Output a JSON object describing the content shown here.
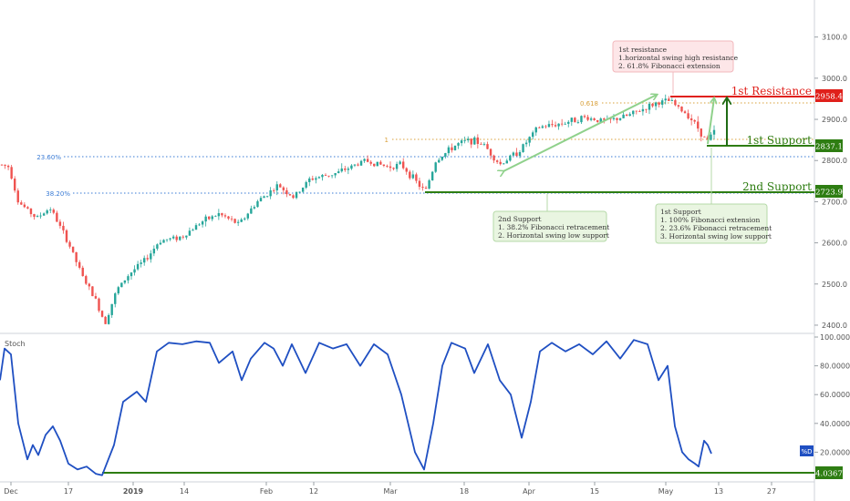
{
  "colors": {
    "bull": "#26a69a",
    "bear": "#ef5350",
    "stoch": "#1f4fc2",
    "support": "#2e7d12",
    "resistance": "#e0201b",
    "fib_orange": "#d9a13c",
    "fib_blue": "#3a7bd5",
    "arrow_green": "#8fd18b",
    "dark_arrow": "#1f6b14"
  },
  "chart_data": [
    {
      "type": "candlestick",
      "ylim": [
        2380,
        3190
      ],
      "yticks": [
        "2400.0",
        "2500.0",
        "2600.0",
        "2700.0",
        "2800.0",
        "2900.0",
        "3000.0",
        "3100.0"
      ],
      "xticks": [
        "Dec",
        "17",
        "2019",
        "14",
        "Feb",
        "12",
        "Mar",
        "18",
        "Apr",
        "15",
        "May",
        "13",
        "27"
      ],
      "price_path": [
        [
          0,
          2790
        ],
        [
          10,
          2785
        ],
        [
          20,
          2700
        ],
        [
          40,
          2660
        ],
        [
          55,
          2685
        ],
        [
          75,
          2600
        ],
        [
          90,
          2520
        ],
        [
          105,
          2460
        ],
        [
          115,
          2405
        ],
        [
          128,
          2485
        ],
        [
          142,
          2525
        ],
        [
          160,
          2560
        ],
        [
          175,
          2605
        ],
        [
          200,
          2615
        ],
        [
          220,
          2650
        ],
        [
          240,
          2670
        ],
        [
          262,
          2645
        ],
        [
          282,
          2700
        ],
        [
          305,
          2740
        ],
        [
          322,
          2710
        ],
        [
          340,
          2755
        ],
        [
          370,
          2770
        ],
        [
          400,
          2800
        ],
        [
          425,
          2785
        ],
        [
          440,
          2790
        ],
        [
          452,
          2760
        ],
        [
          466,
          2723
        ],
        [
          478,
          2800
        ],
        [
          500,
          2838
        ],
        [
          515,
          2850
        ],
        [
          530,
          2840
        ],
        [
          548,
          2790
        ],
        [
          570,
          2825
        ],
        [
          590,
          2880
        ],
        [
          615,
          2890
        ],
        [
          640,
          2905
        ],
        [
          665,
          2895
        ],
        [
          690,
          2910
        ],
        [
          705,
          2925
        ],
        [
          720,
          2940
        ],
        [
          735,
          2945
        ],
        [
          745,
          2925
        ],
        [
          755,
          2910
        ],
        [
          765,
          2880
        ],
        [
          775,
          2845
        ],
        [
          783,
          2870
        ]
      ]
    },
    {
      "type": "line",
      "title": "Stoch",
      "ylim": [
        0,
        100
      ],
      "yticks": [
        "20.0000",
        "40.0000",
        "60.0000",
        "80.0000",
        "100.0000"
      ],
      "series": [
        {
          "values": [
            [
              0,
              70
            ],
            [
              5,
              92
            ],
            [
              12,
              88
            ],
            [
              20,
              40
            ],
            [
              30,
              15
            ],
            [
              36,
              25
            ],
            [
              42,
              18
            ],
            [
              50,
              32
            ],
            [
              58,
              38
            ],
            [
              66,
              28
            ],
            [
              75,
              12
            ],
            [
              85,
              8
            ],
            [
              95,
              10
            ],
            [
              105,
              5
            ],
            [
              112,
              4
            ],
            [
              125,
              25
            ],
            [
              135,
              55
            ],
            [
              150,
              62
            ],
            [
              160,
              55
            ],
            [
              172,
              90
            ],
            [
              185,
              96
            ],
            [
              200,
              95
            ],
            [
              215,
              97
            ],
            [
              230,
              96
            ],
            [
              240,
              82
            ],
            [
              255,
              90
            ],
            [
              265,
              70
            ],
            [
              275,
              85
            ],
            [
              290,
              96
            ],
            [
              300,
              92
            ],
            [
              310,
              80
            ],
            [
              320,
              95
            ],
            [
              335,
              75
            ],
            [
              350,
              96
            ],
            [
              365,
              92
            ],
            [
              380,
              95
            ],
            [
              395,
              80
            ],
            [
              410,
              95
            ],
            [
              425,
              88
            ],
            [
              440,
              60
            ],
            [
              455,
              20
            ],
            [
              465,
              8
            ],
            [
              475,
              40
            ],
            [
              485,
              80
            ],
            [
              495,
              96
            ],
            [
              510,
              92
            ],
            [
              520,
              75
            ],
            [
              535,
              95
            ],
            [
              548,
              70
            ],
            [
              560,
              60
            ],
            [
              572,
              30
            ],
            [
              582,
              55
            ],
            [
              592,
              90
            ],
            [
              605,
              96
            ],
            [
              620,
              90
            ],
            [
              635,
              95
            ],
            [
              650,
              88
            ],
            [
              665,
              97
            ],
            [
              680,
              85
            ],
            [
              695,
              98
            ],
            [
              710,
              95
            ],
            [
              722,
              70
            ],
            [
              732,
              80
            ],
            [
              740,
              38
            ],
            [
              748,
              20
            ],
            [
              755,
              15
            ],
            [
              762,
              12
            ],
            [
              766,
              10
            ],
            [
              772,
              28
            ],
            [
              776,
              25
            ],
            [
              780,
              19
            ]
          ]
        }
      ]
    }
  ],
  "axis": {
    "price_labels": [
      "2400.0",
      "2500.0",
      "2600.0",
      "2700.0",
      "2800.0",
      "2900.0",
      "3000.0",
      "3100.0"
    ],
    "stoch_labels": [
      "20.0000",
      "40.0000",
      "60.0000",
      "80.0000",
      "100.0000"
    ],
    "time_labels": [
      "Dec",
      "17",
      "2019",
      "14",
      "Feb",
      "12",
      "Mar",
      "18",
      "Apr",
      "15",
      "May",
      "13",
      "27"
    ]
  },
  "badges": {
    "resistance": "2958.4",
    "support1": "2837.1",
    "support2": "2723.9",
    "stoch_low": "4.0367",
    "stoch_tag": "%D"
  },
  "labels": {
    "resistance": "1st Resistance",
    "support1": "1st Support",
    "support2": "2nd Support",
    "stoch_title": "Stoch",
    "fib_0618": "0.618",
    "fib_1": "1",
    "fib_2360": "23.60%",
    "fib_3820": "38.20%"
  },
  "notes": {
    "resistance": [
      "1st resistance",
      "1.horizontal swing high resistance",
      "2. 61.8% Fibonacci extension"
    ],
    "support2": [
      "2nd Support",
      "1. 38.2% Fibonacci retracement",
      "2. Horizontal swing low support"
    ],
    "support1": [
      "1st Support",
      "1. 100% Fibonacci extension",
      "2. 23.6% Fibonacci retracement",
      "3. Horizontal swing low support"
    ]
  }
}
